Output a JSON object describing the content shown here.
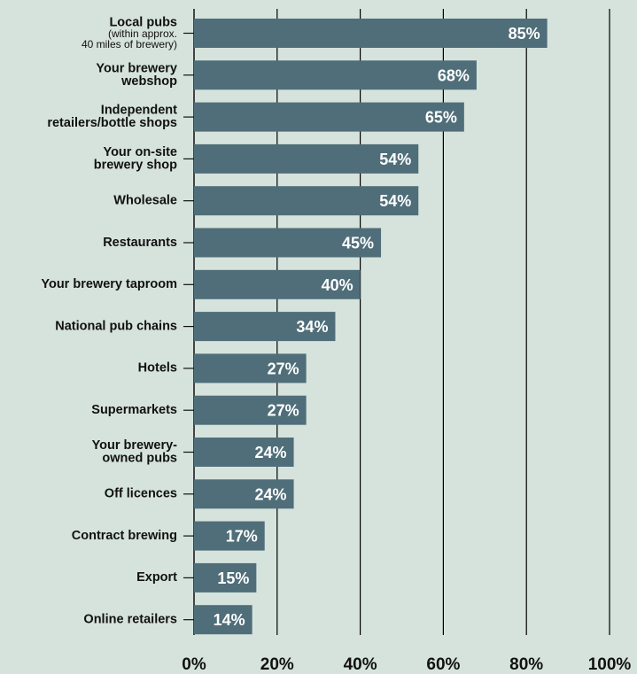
{
  "colors": {
    "background": "#d6e3dd",
    "bar": "#4f6e79",
    "bar_label": "#ffffff",
    "grid": "#000000",
    "text": "#111111"
  },
  "chart_data": {
    "type": "bar",
    "orientation": "horizontal",
    "grid": true,
    "xlim": [
      0,
      100
    ],
    "x_ticks": [
      "0%",
      "20%",
      "40%",
      "60%",
      "80%",
      "100%"
    ],
    "categories": [
      {
        "lines": [
          "Local pubs"
        ],
        "sublines": [
          "(within approx.",
          "40 miles of brewery)"
        ]
      },
      {
        "lines": [
          "Your brewery",
          "webshop"
        ]
      },
      {
        "lines": [
          "Independent",
          "retailers/bottle shops"
        ]
      },
      {
        "lines": [
          "Your on-site",
          "brewery shop"
        ]
      },
      {
        "lines": [
          "Wholesale"
        ]
      },
      {
        "lines": [
          "Restaurants"
        ]
      },
      {
        "lines": [
          "Your brewery taproom"
        ]
      },
      {
        "lines": [
          "National pub chains"
        ]
      },
      {
        "lines": [
          "Hotels"
        ]
      },
      {
        "lines": [
          "Supermarkets"
        ]
      },
      {
        "lines": [
          "Your brewery-",
          "owned pubs"
        ]
      },
      {
        "lines": [
          "Off licences"
        ]
      },
      {
        "lines": [
          "Contract brewing"
        ]
      },
      {
        "lines": [
          "Export"
        ]
      },
      {
        "lines": [
          "Online retailers"
        ]
      }
    ],
    "values": [
      85,
      68,
      65,
      54,
      54,
      45,
      40,
      34,
      27,
      27,
      24,
      24,
      17,
      15,
      14
    ],
    "value_labels": [
      "85%",
      "68%",
      "65%",
      "54%",
      "54%",
      "45%",
      "40%",
      "34%",
      "27%",
      "27%",
      "24%",
      "24%",
      "17%",
      "15%",
      "14%"
    ]
  }
}
